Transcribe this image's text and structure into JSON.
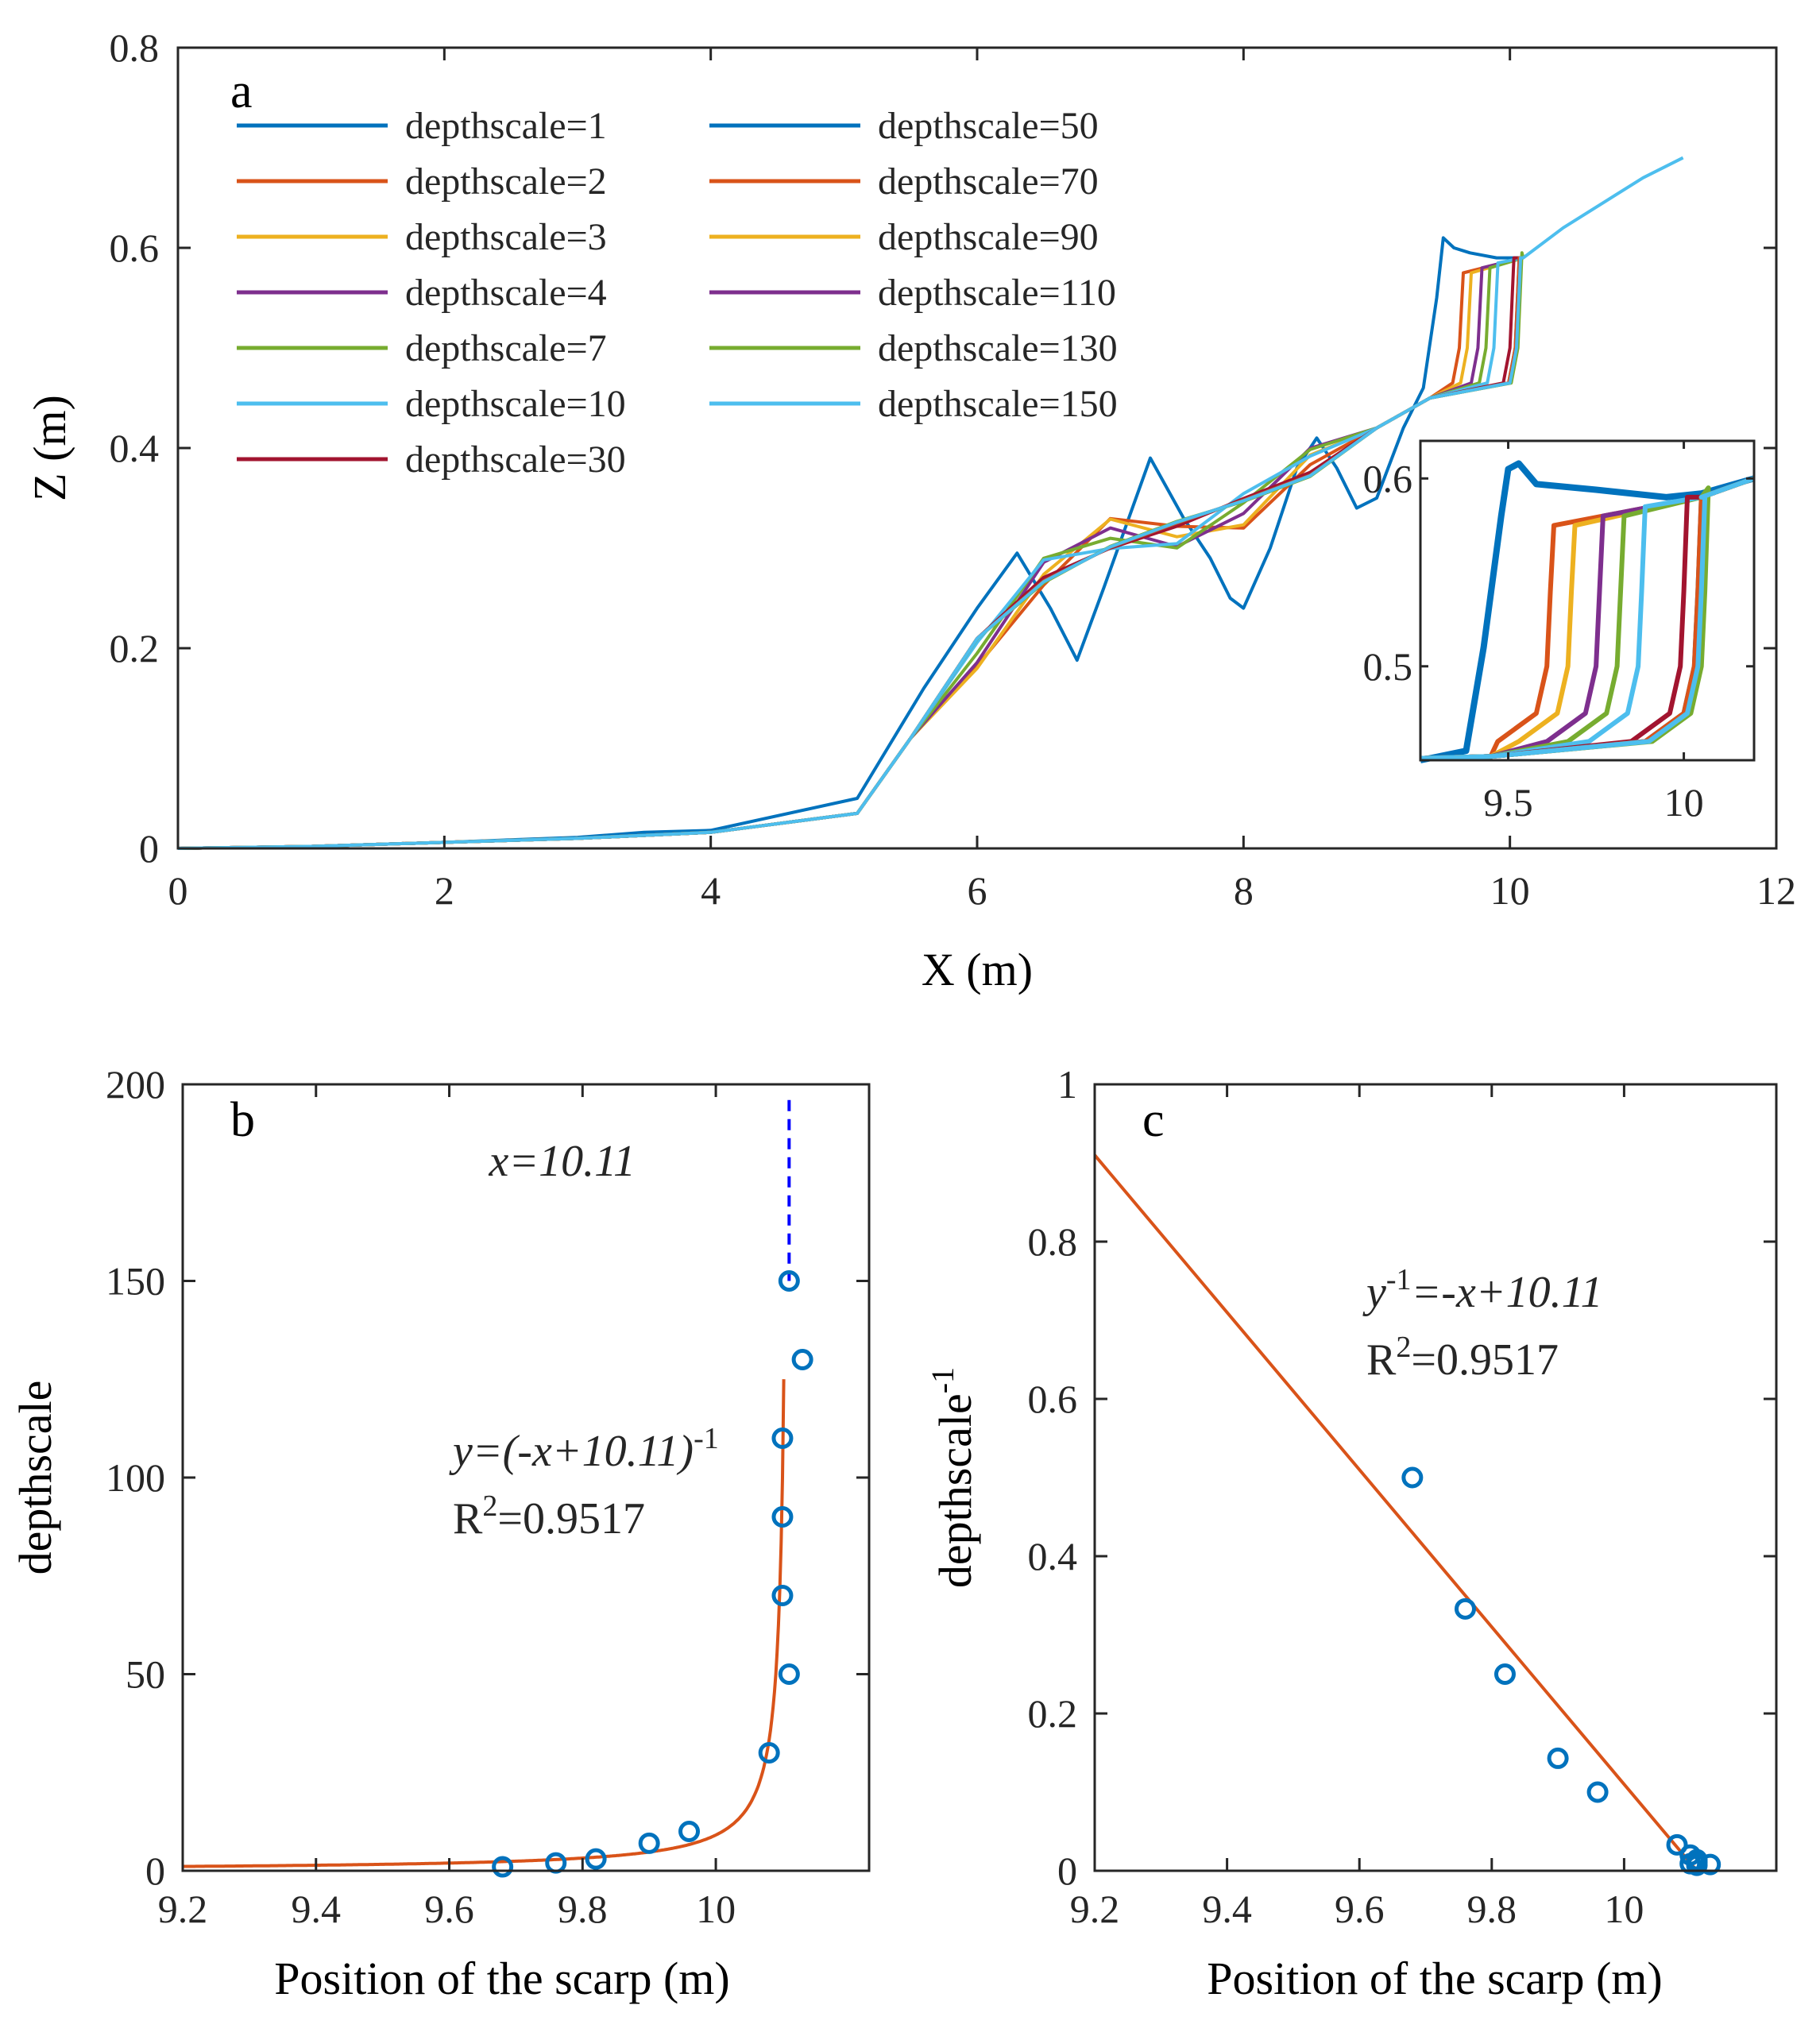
{
  "chart_data": [
    {
      "id": "a",
      "type": "line",
      "panel_label": "a",
      "xlabel": "X (m)",
      "ylabel": "Z (m)",
      "xlim": [
        0,
        12
      ],
      "ylim": [
        0,
        0.8
      ],
      "xticks": [
        "0",
        "2",
        "4",
        "6",
        "8",
        "10",
        "12"
      ],
      "yticks": [
        "0",
        "0.2",
        "0.4",
        "0.6",
        "0.8"
      ],
      "legend": {
        "placement": "top-left",
        "columns": 2
      },
      "series": [
        {
          "name": "depthscale=1",
          "color": "#0072BD",
          "scarp": 9.5,
          "top": 0.61,
          "variant": "wild"
        },
        {
          "name": "depthscale=2",
          "color": "#D95319",
          "scarp": 9.62,
          "top": 0.575,
          "variant": "mid"
        },
        {
          "name": "depthscale=3",
          "color": "#EDB120",
          "scarp": 9.68,
          "top": 0.575,
          "variant": "mid"
        },
        {
          "name": "depthscale=4",
          "color": "#7E2F8E",
          "scarp": 9.76,
          "top": 0.58,
          "variant": "mid"
        },
        {
          "name": "depthscale=7",
          "color": "#77AC30",
          "scarp": 9.82,
          "top": 0.58,
          "variant": "mid"
        },
        {
          "name": "depthscale=10",
          "color": "#4DBEEE",
          "scarp": 9.88,
          "top": 0.585,
          "variant": "mid"
        },
        {
          "name": "depthscale=30",
          "color": "#A2142F",
          "scarp": 10.0,
          "top": 0.59,
          "variant": "smooth"
        },
        {
          "name": "depthscale=50",
          "color": "#0072BD",
          "scarp": 10.04,
          "top": 0.59,
          "variant": "smooth"
        },
        {
          "name": "depthscale=70",
          "color": "#D95319",
          "scarp": 10.04,
          "top": 0.59,
          "variant": "smooth"
        },
        {
          "name": "depthscale=90",
          "color": "#EDB120",
          "scarp": 10.05,
          "top": 0.59,
          "variant": "smooth"
        },
        {
          "name": "depthscale=110",
          "color": "#7E2F8E",
          "scarp": 10.05,
          "top": 0.59,
          "variant": "smooth"
        },
        {
          "name": "depthscale=130",
          "color": "#77AC30",
          "scarp": 10.06,
          "top": 0.595,
          "variant": "smooth"
        },
        {
          "name": "depthscale=150",
          "color": "#4DBEEE",
          "scarp": 10.05,
          "top": 0.59,
          "variant": "smooth"
        }
      ],
      "inset": {
        "xlim": [
          9.25,
          10.2
        ],
        "ylim": [
          0.45,
          0.62
        ],
        "xticks": [
          "9.5",
          "10"
        ],
        "yticks": [
          "0.5",
          "0.6"
        ]
      }
    },
    {
      "id": "b",
      "type": "scatter",
      "panel_label": "b",
      "xlabel": "Position of the scarp (m)",
      "ylabel": "depthscale",
      "xlim": [
        9.2,
        10.23
      ],
      "ylim": [
        0,
        200
      ],
      "xticks": [
        "9.2",
        "9.4",
        "9.6",
        "9.8",
        "10"
      ],
      "yticks": [
        "0",
        "50",
        "100",
        "150",
        "200"
      ],
      "points": [
        {
          "x": 9.68,
          "y": 1
        },
        {
          "x": 9.76,
          "y": 2
        },
        {
          "x": 9.82,
          "y": 3
        },
        {
          "x": 9.9,
          "y": 7
        },
        {
          "x": 9.96,
          "y": 10
        },
        {
          "x": 10.08,
          "y": 30
        },
        {
          "x": 10.11,
          "y": 50
        },
        {
          "x": 10.1,
          "y": 70
        },
        {
          "x": 10.1,
          "y": 90
        },
        {
          "x": 10.1,
          "y": 110
        },
        {
          "x": 10.13,
          "y": 130
        },
        {
          "x": 10.11,
          "y": 150
        }
      ],
      "fit": {
        "type": "hyperbola",
        "asymptote": 10.11,
        "color": "#D95319"
      },
      "asymptote_line": {
        "x": 10.11,
        "color": "#0000FF"
      },
      "point_color": "#0072BD",
      "annotation_x": "x=10.11",
      "equation": "y=(-x+10.11)",
      "equation_exp": "-1",
      "r2": "R",
      "r2_sup": "2",
      "r2_value": "=0.9517"
    },
    {
      "id": "c",
      "type": "scatter",
      "panel_label": "c",
      "xlabel": "Position of the scarp (m)",
      "ylabel": "depthscale",
      "ylabel_sup": "-1",
      "xlim": [
        9.2,
        10.23
      ],
      "ylim": [
        0,
        1
      ],
      "xticks": [
        "9.2",
        "9.4",
        "9.6",
        "9.8",
        "10"
      ],
      "yticks": [
        "0",
        "0.2",
        "0.4",
        "0.6",
        "0.8",
        "1"
      ],
      "points": [
        {
          "x": 9.68,
          "y": 0.5
        },
        {
          "x": 9.76,
          "y": 0.333
        },
        {
          "x": 9.82,
          "y": 0.25
        },
        {
          "x": 9.9,
          "y": 0.143
        },
        {
          "x": 9.96,
          "y": 0.1
        },
        {
          "x": 10.08,
          "y": 0.033
        },
        {
          "x": 10.1,
          "y": 0.02
        },
        {
          "x": 10.11,
          "y": 0.014
        },
        {
          "x": 10.11,
          "y": 0.011
        },
        {
          "x": 10.1,
          "y": 0.009
        },
        {
          "x": 10.13,
          "y": 0.008
        },
        {
          "x": 10.11,
          "y": 0.007
        }
      ],
      "fit": {
        "type": "linear",
        "slope": -1,
        "intercept": 10.11,
        "color": "#D95319"
      },
      "point_color": "#0072BD",
      "equation_y": "y",
      "equation_exp": "-1",
      "equation_rest": "=-x+10.11",
      "r2": "R",
      "r2_sup": "2",
      "r2_value": "=0.9517"
    }
  ]
}
